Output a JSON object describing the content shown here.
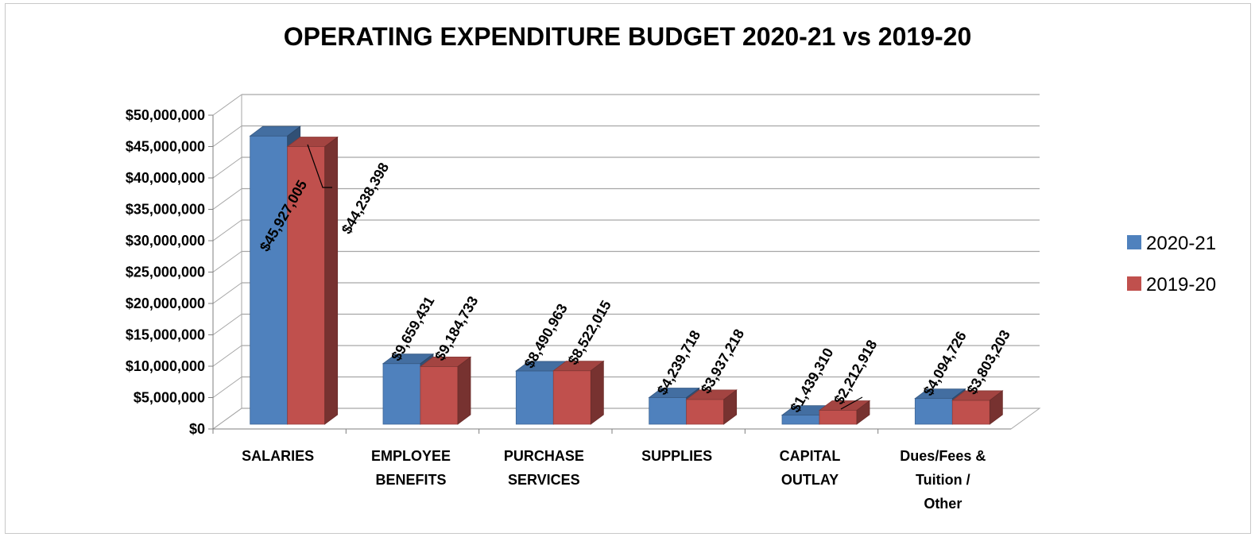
{
  "chart_data": {
    "type": "bar",
    "title": "OPERATING EXPENDITURE BUDGET 2020-21 vs 2019-20",
    "categories": [
      [
        "SALARIES"
      ],
      [
        "EMPLOYEE",
        "BENEFITS"
      ],
      [
        "PURCHASE",
        "SERVICES"
      ],
      [
        "SUPPLIES"
      ],
      [
        "CAPITAL",
        "OUTLAY"
      ],
      [
        "Dues/Fees &",
        "Tuition /",
        "Other"
      ]
    ],
    "series": [
      {
        "name": "2020-21",
        "color": "#4f81bd",
        "values": [
          45927005,
          9659431,
          8490963,
          4239718,
          1439310,
          4094726
        ],
        "labels": [
          "$45,927,005",
          "$9,659,431",
          "$8,490,963",
          "$4,239,718",
          "$1,439,310",
          "$4,094,726"
        ]
      },
      {
        "name": "2019-20",
        "color": "#c0504d",
        "values": [
          44238398,
          9184733,
          8522015,
          3937218,
          2212918,
          3803203
        ],
        "labels": [
          "$44,238,398",
          "$9,184,733",
          "$8,522,015",
          "$3,937,218",
          "$2,212,918",
          "$3,803,203"
        ]
      }
    ],
    "yticks": [
      "$0",
      "$5,000,000",
      "$10,000,000",
      "$15,000,000",
      "$20,000,000",
      "$25,000,000",
      "$30,000,000",
      "$35,000,000",
      "$40,000,000",
      "$45,000,000",
      "$50,000,000"
    ],
    "ylim": [
      0,
      50000000
    ],
    "grid": true,
    "legend_position": "right",
    "style": "3d-clustered-column"
  }
}
